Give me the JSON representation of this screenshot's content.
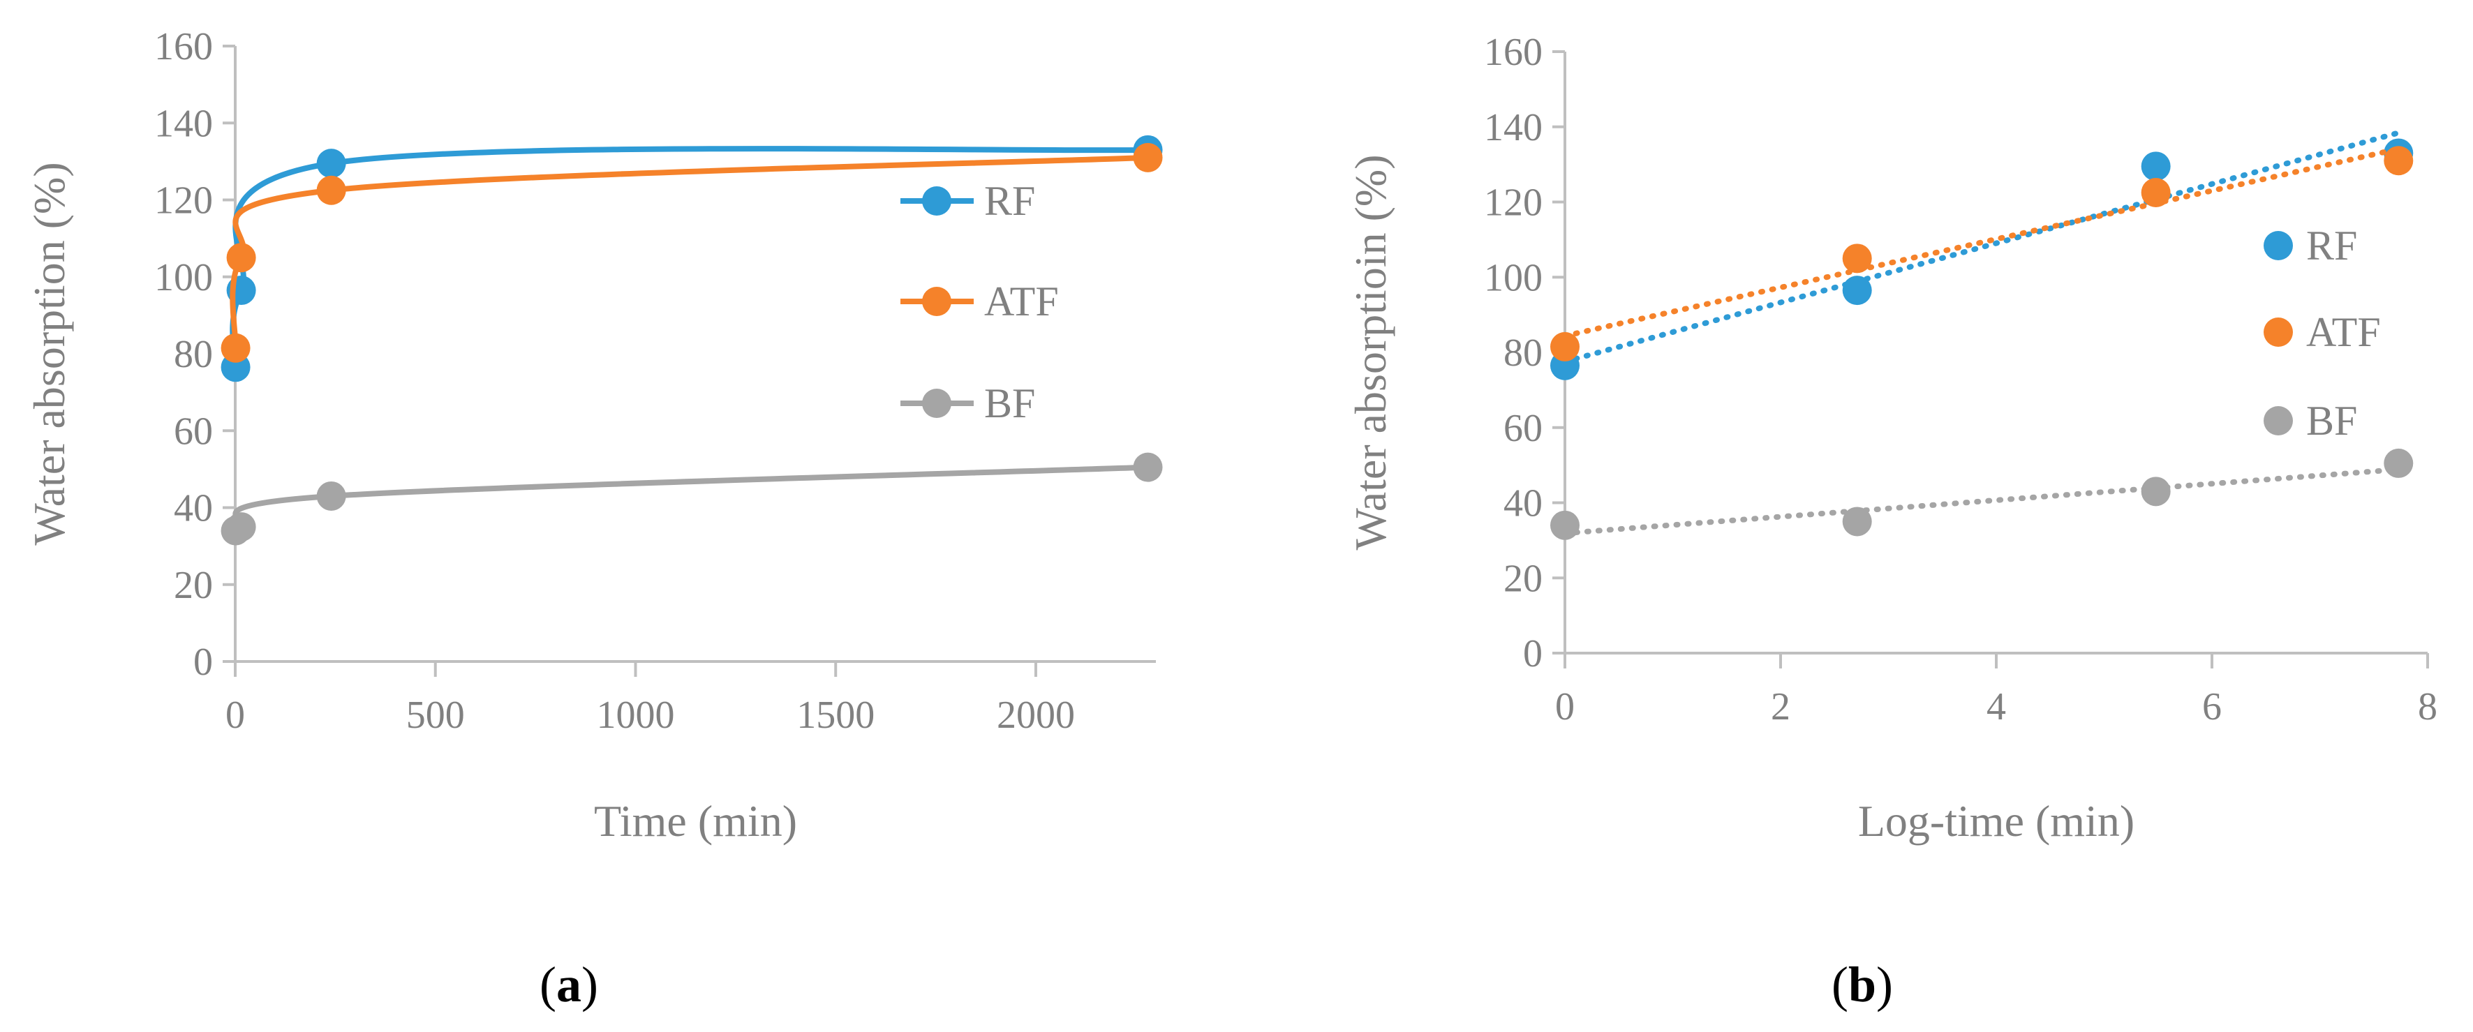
{
  "chart_data": [
    {
      "id": "a",
      "type": "line",
      "caption": {
        "open": "(",
        "letter": "a",
        "close": ")"
      },
      "xlabel": "Time (min)",
      "ylabel": "Water absorption (%)",
      "xlim": [
        0,
        2300
      ],
      "ylim": [
        0,
        160
      ],
      "xticks": [
        0,
        500,
        1000,
        1500,
        2000
      ],
      "yticks": [
        0,
        20,
        40,
        60,
        80,
        100,
        120,
        140,
        160
      ],
      "grid": false,
      "legend": "right",
      "line_style": "smooth",
      "series": [
        {
          "name": "RF",
          "color": "#2E9BD6",
          "x": [
            1,
            15,
            240,
            2280
          ],
          "y": [
            76.5,
            96.5,
            129.5,
            133
          ]
        },
        {
          "name": "ATF",
          "color": "#F5822A",
          "x": [
            1,
            15,
            240,
            2280
          ],
          "y": [
            81.5,
            105,
            122.5,
            131
          ]
        },
        {
          "name": "BF",
          "color": "#A5A5A5",
          "x": [
            1,
            15,
            240,
            2280
          ],
          "y": [
            34,
            35,
            43,
            50.5
          ]
        }
      ]
    },
    {
      "id": "b",
      "type": "scatter",
      "caption": {
        "open": "(",
        "letter": "b",
        "close": ")"
      },
      "xlabel": "Log-time (min)",
      "ylabel": "Water absorptioin (%)",
      "xlim": [
        0,
        8
      ],
      "ylim": [
        0,
        160
      ],
      "xticks": [
        0,
        2,
        4,
        6,
        8
      ],
      "yticks": [
        0,
        20,
        40,
        60,
        80,
        100,
        120,
        140,
        160
      ],
      "grid": false,
      "legend": "right",
      "trendline": "linear-dotted",
      "series": [
        {
          "name": "RF",
          "color": "#2E9BD6",
          "x": [
            0,
            2.71,
            5.48,
            7.73
          ],
          "y": [
            76.5,
            96.5,
            129.5,
            133
          ]
        },
        {
          "name": "ATF",
          "color": "#F5822A",
          "x": [
            0,
            2.71,
            5.48,
            7.73
          ],
          "y": [
            81.5,
            105,
            122.5,
            131
          ]
        },
        {
          "name": "BF",
          "color": "#A5A5A5",
          "x": [
            0,
            2.71,
            5.48,
            7.73
          ],
          "y": [
            34,
            35,
            43,
            50.5
          ]
        }
      ]
    }
  ]
}
